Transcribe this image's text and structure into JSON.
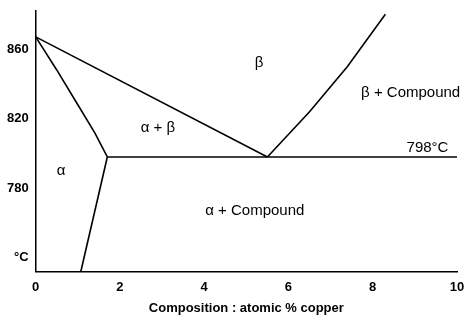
{
  "chart_data": {
    "type": "line",
    "x_label": "Composition : atomic % copper",
    "xlim": [
      0,
      10
    ],
    "xticks": [
      0,
      2,
      4,
      6,
      8,
      10
    ],
    "ylim": [
      732,
      882
    ],
    "yticks": [
      {
        "value": 740,
        "label": "°C"
      },
      780,
      820,
      860
    ],
    "grid": false,
    "series": [
      {
        "color": "#000000",
        "x": [
          0,
          0.5,
          1,
          1.4,
          1.7
        ],
        "values": [
          867,
          848,
          828,
          812,
          798
        ]
      },
      {
        "color": "#000000",
        "x": [
          0,
          5.5
        ],
        "values": [
          867,
          798
        ]
      },
      {
        "color": "#000000",
        "x": [
          5.5,
          6.5,
          7.4,
          8.3
        ],
        "values": [
          798,
          824,
          850,
          880
        ]
      },
      {
        "color": "#000000",
        "x": [
          1.7,
          10
        ],
        "values": [
          798,
          798
        ]
      },
      {
        "color": "#000000",
        "x": [
          1.7,
          1.07
        ],
        "values": [
          798,
          732
        ]
      }
    ],
    "annotations": [
      {
        "text": "α",
        "x": 0.6,
        "y": 790
      },
      {
        "text": "α + β",
        "x": 2.9,
        "y": 815
      },
      {
        "text": "β",
        "x": 5.3,
        "y": 852
      },
      {
        "text": "β + Compound",
        "x": 8.9,
        "y": 835
      },
      {
        "text": "α + Compound",
        "x": 5.2,
        "y": 767
      },
      {
        "text": "798°C",
        "x": 9.3,
        "y": 803
      }
    ]
  }
}
